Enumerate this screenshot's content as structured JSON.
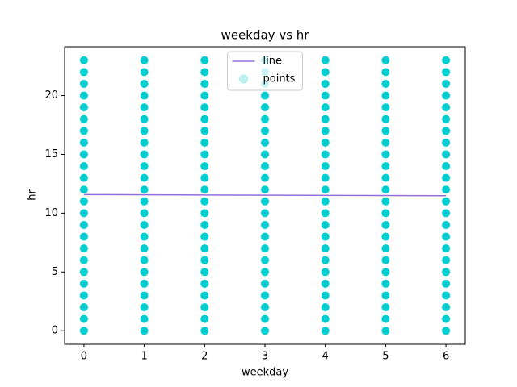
{
  "chart_data": {
    "type": "scatter",
    "title": "weekday vs hr",
    "x_label": "weekday",
    "y_label": "hr",
    "xlim": [
      -0.32,
      6.32
    ],
    "ylim": [
      -1.15,
      24.15
    ],
    "xticks": [
      0,
      1,
      2,
      3,
      4,
      5,
      6
    ],
    "yticks": [
      0,
      5,
      10,
      15,
      20
    ],
    "legend": "upper center",
    "series": [
      {
        "name": "line",
        "kind": "line",
        "color": "#9370db",
        "x": [
          0,
          6
        ],
        "values": [
          11.58,
          11.48
        ]
      },
      {
        "name": "points",
        "kind": "points",
        "color": "#00ced1",
        "x": [
          0,
          0,
          0,
          0,
          0,
          0,
          0,
          0,
          0,
          0,
          0,
          0,
          0,
          0,
          0,
          0,
          0,
          0,
          0,
          0,
          0,
          0,
          0,
          0,
          1,
          1,
          1,
          1,
          1,
          1,
          1,
          1,
          1,
          1,
          1,
          1,
          1,
          1,
          1,
          1,
          1,
          1,
          1,
          1,
          1,
          1,
          1,
          1,
          2,
          2,
          2,
          2,
          2,
          2,
          2,
          2,
          2,
          2,
          2,
          2,
          2,
          2,
          2,
          2,
          2,
          2,
          2,
          2,
          2,
          2,
          2,
          2,
          3,
          3,
          3,
          3,
          3,
          3,
          3,
          3,
          3,
          3,
          3,
          3,
          3,
          3,
          3,
          3,
          3,
          3,
          3,
          3,
          3,
          3,
          3,
          3,
          4,
          4,
          4,
          4,
          4,
          4,
          4,
          4,
          4,
          4,
          4,
          4,
          4,
          4,
          4,
          4,
          4,
          4,
          4,
          4,
          4,
          4,
          4,
          4,
          5,
          5,
          5,
          5,
          5,
          5,
          5,
          5,
          5,
          5,
          5,
          5,
          5,
          5,
          5,
          5,
          5,
          5,
          5,
          5,
          5,
          5,
          5,
          5,
          6,
          6,
          6,
          6,
          6,
          6,
          6,
          6,
          6,
          6,
          6,
          6,
          6,
          6,
          6,
          6,
          6,
          6,
          6,
          6,
          6,
          6,
          6,
          6
        ],
        "values": [
          0,
          1,
          2,
          3,
          4,
          5,
          6,
          7,
          8,
          9,
          10,
          11,
          12,
          13,
          14,
          15,
          16,
          17,
          18,
          19,
          20,
          21,
          22,
          23,
          0,
          1,
          2,
          3,
          4,
          5,
          6,
          7,
          8,
          9,
          10,
          11,
          12,
          13,
          14,
          15,
          16,
          17,
          18,
          19,
          20,
          21,
          22,
          23,
          0,
          1,
          2,
          3,
          4,
          5,
          6,
          7,
          8,
          9,
          10,
          11,
          12,
          13,
          14,
          15,
          16,
          17,
          18,
          19,
          20,
          21,
          22,
          23,
          0,
          1,
          2,
          3,
          4,
          5,
          6,
          7,
          8,
          9,
          10,
          11,
          12,
          13,
          14,
          15,
          16,
          17,
          18,
          19,
          20,
          21,
          22,
          23,
          0,
          1,
          2,
          3,
          4,
          5,
          6,
          7,
          8,
          9,
          10,
          11,
          12,
          13,
          14,
          15,
          16,
          17,
          18,
          19,
          20,
          21,
          22,
          23,
          0,
          1,
          2,
          3,
          4,
          5,
          6,
          7,
          8,
          9,
          10,
          11,
          12,
          13,
          14,
          15,
          16,
          17,
          18,
          19,
          20,
          21,
          22,
          23,
          0,
          1,
          2,
          3,
          4,
          5,
          6,
          7,
          8,
          9,
          10,
          11,
          12,
          13,
          14,
          15,
          16,
          17,
          18,
          19,
          20,
          21,
          22,
          23
        ]
      }
    ]
  }
}
